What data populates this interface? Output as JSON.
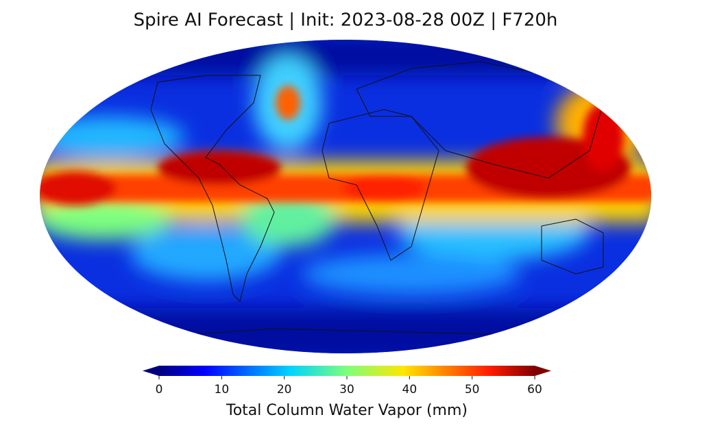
{
  "title": "Spire AI Forecast | Init: 2023-08-28 00Z | F720h",
  "colorbar": {
    "label": "Total Column Water Vapor (mm)",
    "lim": [
      0,
      60
    ],
    "ticks": [
      0,
      10,
      20,
      30,
      40,
      50,
      60
    ]
  }
}
